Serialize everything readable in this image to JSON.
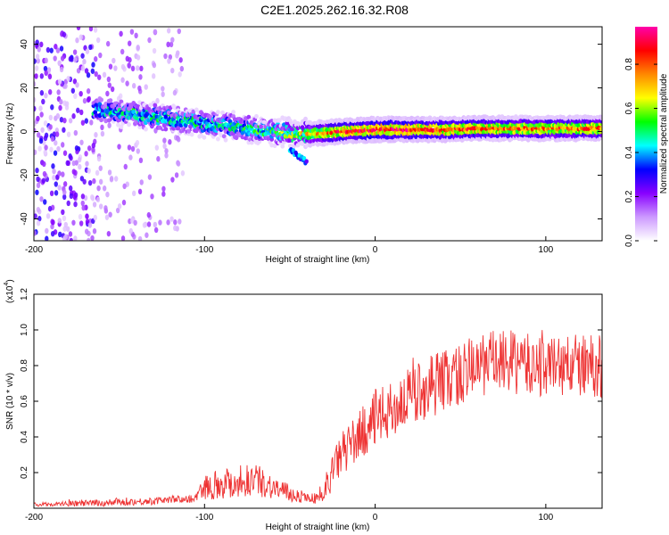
{
  "title": "C2E1.2025.262.16.32.R08",
  "chart_data": [
    {
      "type": "heatmap",
      "title": "C2E1.2025.262.16.32.R08",
      "xlabel": "Height of straight line (km)",
      "ylabel": "Frequency (Hz)",
      "xlim": [
        -200,
        133
      ],
      "ylim": [
        -50,
        48
      ],
      "x_ticks": [
        -200,
        -100,
        0,
        100
      ],
      "y_ticks": [
        -40,
        -20,
        0,
        20,
        40
      ],
      "colorbar": {
        "label": "Normalized spectral amplitude",
        "range": [
          0,
          0.97
        ],
        "ticks": [
          0.0,
          0.2,
          0.4,
          0.6,
          0.8
        ],
        "tick_labels": [
          "0.0",
          "0.2",
          "0.4",
          "0.6",
          "0.8"
        ],
        "colors": [
          "#ffffff",
          "#cc99ff",
          "#8800ff",
          "#0000ff",
          "#00ffff",
          "#00ff00",
          "#ffff00",
          "#ff8800",
          "#ff0000",
          "#ff00aa"
        ]
      },
      "ridge": {
        "x": [
          -160,
          -140,
          -120,
          -100,
          -80,
          -60,
          -40,
          -20,
          0,
          20,
          40,
          60,
          80,
          100,
          120,
          133
        ],
        "freq": [
          10,
          8,
          6,
          4,
          2,
          0,
          -1,
          0,
          1,
          1,
          1,
          1.5,
          1.5,
          1.5,
          1.5,
          1.5
        ],
        "amplitude": [
          0.45,
          0.5,
          0.5,
          0.5,
          0.5,
          0.55,
          0.7,
          0.85,
          0.9,
          0.9,
          0.85,
          0.85,
          0.8,
          0.8,
          0.8,
          0.8
        ]
      },
      "side_branch": {
        "x": [
          -50,
          -45,
          -40
        ],
        "freq": [
          -8,
          -11,
          -14
        ],
        "amplitude": 0.35
      },
      "noise_region_x": [
        -200,
        -112
      ]
    },
    {
      "type": "line",
      "xlabel": "Height of straight line (km)",
      "ylabel": "SNR (10 * v/v)",
      "y_multiplier": "(x10",
      "y_multiplier_exp": "4",
      "xlim": [
        -200,
        133
      ],
      "ylim": [
        0,
        1.2
      ],
      "x_ticks": [
        -200,
        -100,
        0,
        100
      ],
      "y_ticks": [
        0.2,
        0.4,
        0.6,
        0.8,
        1.0,
        1.2
      ],
      "y_tick_labels": [
        "0.2",
        "0.4",
        "0.6",
        "0.8",
        "1.0",
        "1.2"
      ],
      "series": [
        {
          "name": "SNR",
          "color": "#ee3333",
          "x": [
            -200,
            -160,
            -130,
            -120,
            -110,
            -105,
            -100,
            -90,
            -80,
            -70,
            -60,
            -50,
            -40,
            -30,
            -29,
            -25,
            -20,
            -10,
            0,
            10,
            20,
            30,
            40,
            50,
            60,
            70,
            80,
            90,
            100,
            110,
            120,
            133
          ],
          "mean": [
            0.02,
            0.03,
            0.04,
            0.05,
            0.05,
            0.06,
            0.12,
            0.14,
            0.15,
            0.16,
            0.12,
            0.08,
            0.06,
            0.05,
            0.12,
            0.2,
            0.3,
            0.4,
            0.5,
            0.55,
            0.62,
            0.68,
            0.72,
            0.75,
            0.8,
            0.82,
            0.82,
            0.8,
            0.8,
            0.8,
            0.8,
            0.8
          ],
          "spread": [
            0.01,
            0.02,
            0.02,
            0.02,
            0.02,
            0.03,
            0.07,
            0.09,
            0.1,
            0.09,
            0.07,
            0.05,
            0.03,
            0.03,
            0.08,
            0.1,
            0.12,
            0.14,
            0.16,
            0.16,
            0.17,
            0.18,
            0.18,
            0.18,
            0.18,
            0.18,
            0.18,
            0.18,
            0.18,
            0.18,
            0.18,
            0.18
          ]
        }
      ]
    }
  ]
}
